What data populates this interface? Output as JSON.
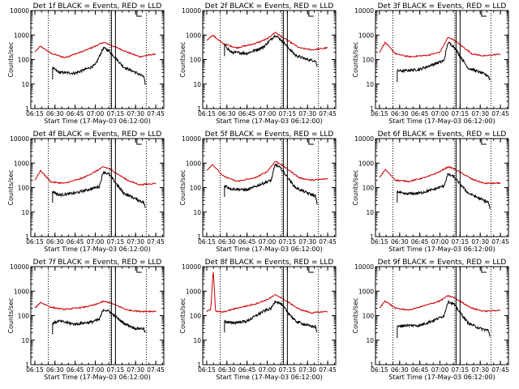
{
  "colors": {
    "events": "#000000",
    "lld": "#cc0000",
    "background": "#ffffff",
    "axes": "#000000"
  },
  "chart_data": [
    {
      "type": "line",
      "title": "Det 1f BLACK = Events, RED = LLD",
      "xlabel": "Start Time (17-May-03 06:12:00)",
      "ylabel": "Counts/sec",
      "yscale": "log",
      "ylim": [
        1,
        10000
      ],
      "xlim": [
        "06:12",
        "07:51"
      ],
      "x_ticks": [
        "06:15",
        "06:30",
        "06:45",
        "07:00",
        "07:15",
        "07:30",
        "07:45"
      ],
      "y_ticks": [
        "1",
        "10",
        "100",
        "1000",
        "10000"
      ],
      "events_profile": [
        [
          6.47,
          45
        ],
        [
          6.55,
          30
        ],
        [
          6.75,
          28
        ],
        [
          6.92,
          45
        ],
        [
          7.0,
          60
        ],
        [
          7.1,
          300
        ],
        [
          7.17,
          230
        ],
        [
          7.35,
          50
        ],
        [
          7.5,
          30
        ],
        [
          7.6,
          20
        ],
        [
          7.62,
          10
        ]
      ],
      "lld_profile": [
        [
          6.25,
          200
        ],
        [
          6.32,
          350
        ],
        [
          6.45,
          180
        ],
        [
          6.62,
          120
        ],
        [
          6.85,
          220
        ],
        [
          7.0,
          350
        ],
        [
          7.1,
          500
        ],
        [
          7.17,
          420
        ],
        [
          7.4,
          200
        ],
        [
          7.55,
          130
        ],
        [
          7.75,
          170
        ]
      ],
      "events_start": 6.47,
      "events_end": 7.62
    },
    {
      "type": "line",
      "title": "Det 2f BLACK = Events, RED = LLD",
      "xlabel": "Start Time (17-May-03 06:12:00)",
      "ylabel": "Counts/sec",
      "yscale": "log",
      "ylim": [
        1,
        10000
      ],
      "xlim": [
        "06:12",
        "07:51"
      ],
      "x_ticks": [
        "06:15",
        "06:30",
        "06:45",
        "07:00",
        "07:15",
        "07:30",
        "07:45"
      ],
      "y_ticks": [
        "1",
        "10",
        "100",
        "1000",
        "10000"
      ],
      "events_profile": [
        [
          6.47,
          400
        ],
        [
          6.55,
          200
        ],
        [
          6.75,
          180
        ],
        [
          6.95,
          320
        ],
        [
          7.1,
          1000
        ],
        [
          7.17,
          650
        ],
        [
          7.35,
          150
        ],
        [
          7.5,
          100
        ],
        [
          7.6,
          90
        ],
        [
          7.62,
          50
        ]
      ],
      "lld_profile": [
        [
          6.25,
          600
        ],
        [
          6.32,
          1000
        ],
        [
          6.45,
          450
        ],
        [
          6.62,
          300
        ],
        [
          6.85,
          450
        ],
        [
          7.0,
          700
        ],
        [
          7.1,
          1300
        ],
        [
          7.17,
          900
        ],
        [
          7.4,
          300
        ],
        [
          7.55,
          250
        ],
        [
          7.75,
          300
        ]
      ],
      "events_start": 6.47,
      "events_end": 7.62
    },
    {
      "type": "line",
      "title": "Det 3f BLACK = Events, RED = LLD",
      "xlabel": "Start Time (17-May-03 06:12:00)",
      "ylabel": "Counts/sec",
      "yscale": "log",
      "ylim": [
        1,
        10000
      ],
      "xlim": [
        "06:12",
        "07:51"
      ],
      "x_ticks": [
        "06:15",
        "06:30",
        "06:45",
        "07:00",
        "07:15",
        "07:30",
        "07:45"
      ],
      "y_ticks": [
        "1",
        "10",
        "100",
        "1000",
        "10000"
      ],
      "events_profile": [
        [
          6.47,
          35
        ],
        [
          6.55,
          35
        ],
        [
          6.75,
          40
        ],
        [
          6.95,
          70
        ],
        [
          7.05,
          90
        ],
        [
          7.1,
          500
        ],
        [
          7.17,
          350
        ],
        [
          7.35,
          45
        ],
        [
          7.5,
          30
        ],
        [
          7.6,
          22
        ],
        [
          7.62,
          15
        ]
      ],
      "lld_profile": [
        [
          6.25,
          200
        ],
        [
          6.32,
          500
        ],
        [
          6.45,
          170
        ],
        [
          6.62,
          130
        ],
        [
          6.85,
          150
        ],
        [
          7.0,
          200
        ],
        [
          7.1,
          800
        ],
        [
          7.17,
          650
        ],
        [
          7.4,
          170
        ],
        [
          7.55,
          140
        ],
        [
          7.75,
          170
        ]
      ],
      "events_start": 6.47,
      "events_end": 7.62
    },
    {
      "type": "line",
      "title": "Det 4f BLACK = Events, RED = LLD",
      "xlabel": "Start Time (17-May-03 06:12:00)",
      "ylabel": "Counts/sec",
      "yscale": "log",
      "ylim": [
        1,
        10000
      ],
      "xlim": [
        "06:12",
        "07:51"
      ],
      "x_ticks": [
        "06:15",
        "06:30",
        "06:45",
        "07:00",
        "07:15",
        "07:30",
        "07:45"
      ],
      "y_ticks": [
        "1",
        "10",
        "100",
        "1000",
        "10000"
      ],
      "events_profile": [
        [
          6.47,
          70
        ],
        [
          6.55,
          50
        ],
        [
          6.75,
          60
        ],
        [
          6.95,
          90
        ],
        [
          7.05,
          110
        ],
        [
          7.1,
          450
        ],
        [
          7.17,
          350
        ],
        [
          7.35,
          60
        ],
        [
          7.5,
          35
        ],
        [
          7.6,
          25
        ],
        [
          7.62,
          15
        ]
      ],
      "lld_profile": [
        [
          6.25,
          200
        ],
        [
          6.32,
          500
        ],
        [
          6.45,
          170
        ],
        [
          6.62,
          150
        ],
        [
          6.85,
          250
        ],
        [
          7.0,
          450
        ],
        [
          7.1,
          700
        ],
        [
          7.17,
          600
        ],
        [
          7.4,
          200
        ],
        [
          7.55,
          130
        ],
        [
          7.75,
          150
        ]
      ],
      "events_start": 6.47,
      "events_end": 7.62
    },
    {
      "type": "line",
      "title": "Det 5f BLACK = Events, RED = LLD",
      "xlabel": "Start Time (17-May-03 06:12:00)",
      "ylabel": "Counts/sec",
      "yscale": "log",
      "ylim": [
        1,
        10000
      ],
      "xlim": [
        "06:12",
        "07:51"
      ],
      "x_ticks": [
        "06:15",
        "06:30",
        "06:45",
        "07:00",
        "07:15",
        "07:30",
        "07:45"
      ],
      "y_ticks": [
        "1",
        "10",
        "100",
        "1000",
        "10000"
      ],
      "events_profile": [
        [
          6.47,
          120
        ],
        [
          6.55,
          90
        ],
        [
          6.75,
          80
        ],
        [
          6.95,
          150
        ],
        [
          7.05,
          200
        ],
        [
          7.1,
          900
        ],
        [
          7.17,
          600
        ],
        [
          7.35,
          100
        ],
        [
          7.5,
          60
        ],
        [
          7.6,
          45
        ],
        [
          7.62,
          20
        ]
      ],
      "lld_profile": [
        [
          6.25,
          500
        ],
        [
          6.32,
          900
        ],
        [
          6.45,
          300
        ],
        [
          6.62,
          180
        ],
        [
          6.85,
          250
        ],
        [
          7.0,
          450
        ],
        [
          7.1,
          1200
        ],
        [
          7.17,
          900
        ],
        [
          7.4,
          250
        ],
        [
          7.55,
          200
        ],
        [
          7.75,
          230
        ]
      ],
      "events_start": 6.47,
      "events_end": 7.62
    },
    {
      "type": "line",
      "title": "Det 6f BLACK = Events, RED = LLD",
      "xlabel": "Start Time (17-May-03 06:12:00)",
      "ylabel": "Counts/sec",
      "yscale": "log",
      "ylim": [
        1,
        10000
      ],
      "xlim": [
        "06:12",
        "07:51"
      ],
      "x_ticks": [
        "06:15",
        "06:30",
        "06:45",
        "07:00",
        "07:15",
        "07:30",
        "07:45"
      ],
      "y_ticks": [
        "1",
        "10",
        "100",
        "1000",
        "10000"
      ],
      "events_profile": [
        [
          6.47,
          70
        ],
        [
          6.55,
          55
        ],
        [
          6.75,
          60
        ],
        [
          6.95,
          90
        ],
        [
          7.05,
          120
        ],
        [
          7.1,
          350
        ],
        [
          7.17,
          280
        ],
        [
          7.35,
          60
        ],
        [
          7.5,
          35
        ],
        [
          7.6,
          25
        ],
        [
          7.62,
          15
        ]
      ],
      "lld_profile": [
        [
          6.25,
          250
        ],
        [
          6.32,
          550
        ],
        [
          6.45,
          200
        ],
        [
          6.62,
          180
        ],
        [
          6.85,
          280
        ],
        [
          7.0,
          450
        ],
        [
          7.1,
          700
        ],
        [
          7.17,
          600
        ],
        [
          7.4,
          220
        ],
        [
          7.55,
          150
        ],
        [
          7.75,
          150
        ]
      ],
      "events_start": 6.47,
      "events_end": 7.62
    },
    {
      "type": "line",
      "title": "Det 7f BLACK = Events, RED = LLD",
      "xlabel": "Start Time (17-May-03 06:12:00)",
      "ylabel": "Counts/sec",
      "yscale": "log",
      "ylim": [
        1,
        10000
      ],
      "xlim": [
        "06:12",
        "07:51"
      ],
      "x_ticks": [
        "06:15",
        "06:30",
        "06:45",
        "07:00",
        "07:15",
        "07:30",
        "07:45"
      ],
      "y_ticks": [
        "1",
        "10",
        "100",
        "1000",
        "10000"
      ],
      "events_profile": [
        [
          6.47,
          50
        ],
        [
          6.55,
          60
        ],
        [
          6.75,
          45
        ],
        [
          6.95,
          55
        ],
        [
          7.05,
          70
        ],
        [
          7.1,
          180
        ],
        [
          7.17,
          150
        ],
        [
          7.35,
          50
        ],
        [
          7.5,
          30
        ],
        [
          7.6,
          30
        ],
        [
          7.62,
          20
        ]
      ],
      "lld_profile": [
        [
          6.25,
          200
        ],
        [
          6.32,
          350
        ],
        [
          6.45,
          220
        ],
        [
          6.62,
          180
        ],
        [
          6.85,
          220
        ],
        [
          7.0,
          280
        ],
        [
          7.1,
          380
        ],
        [
          7.17,
          350
        ],
        [
          7.4,
          170
        ],
        [
          7.55,
          150
        ],
        [
          7.75,
          150
        ]
      ],
      "events_start": 6.47,
      "events_end": 7.62
    },
    {
      "type": "line",
      "title": "Det 8f BLACK = Events, RED = LLD",
      "xlabel": "Start Time (17-May-03 06:12:00)",
      "ylabel": "Counts/sec",
      "yscale": "log",
      "ylim": [
        1,
        10000
      ],
      "xlim": [
        "06:12",
        "07:51"
      ],
      "x_ticks": [
        "06:15",
        "06:30",
        "06:45",
        "07:00",
        "07:15",
        "07:30",
        "07:45"
      ],
      "y_ticks": [
        "1",
        "10",
        "100",
        "1000",
        "10000"
      ],
      "events_profile": [
        [
          6.47,
          60
        ],
        [
          6.55,
          50
        ],
        [
          6.75,
          60
        ],
        [
          6.95,
          150
        ],
        [
          7.05,
          200
        ],
        [
          7.1,
          400
        ],
        [
          7.17,
          300
        ],
        [
          7.35,
          60
        ],
        [
          7.5,
          40
        ],
        [
          7.6,
          35
        ],
        [
          7.62,
          20
        ]
      ],
      "lld_profile": [
        [
          6.25,
          150
        ],
        [
          6.3,
          180
        ],
        [
          6.33,
          8000
        ],
        [
          6.36,
          150
        ],
        [
          6.45,
          140
        ],
        [
          6.62,
          200
        ],
        [
          6.85,
          300
        ],
        [
          7.0,
          450
        ],
        [
          7.1,
          700
        ],
        [
          7.17,
          550
        ],
        [
          7.4,
          180
        ],
        [
          7.55,
          130
        ],
        [
          7.75,
          150
        ]
      ],
      "events_start": 6.47,
      "events_end": 7.62
    },
    {
      "type": "line",
      "title": "Det 9f BLACK = Events, RED = LLD",
      "xlabel": "Start Time (17-May-03 06:12:00)",
      "ylabel": "Counts/sec",
      "yscale": "log",
      "ylim": [
        1,
        10000
      ],
      "xlim": [
        "06:12",
        "07:51"
      ],
      "x_ticks": [
        "06:15",
        "06:30",
        "06:45",
        "07:00",
        "07:15",
        "07:30",
        "07:45"
      ],
      "y_ticks": [
        "1",
        "10",
        "100",
        "1000",
        "10000"
      ],
      "events_profile": [
        [
          6.47,
          35
        ],
        [
          6.55,
          40
        ],
        [
          6.75,
          40
        ],
        [
          6.95,
          70
        ],
        [
          7.05,
          100
        ],
        [
          7.1,
          380
        ],
        [
          7.17,
          300
        ],
        [
          7.35,
          50
        ],
        [
          7.5,
          30
        ],
        [
          7.6,
          25
        ],
        [
          7.62,
          15
        ]
      ],
      "lld_profile": [
        [
          6.25,
          200
        ],
        [
          6.32,
          400
        ],
        [
          6.45,
          200
        ],
        [
          6.62,
          170
        ],
        [
          6.85,
          280
        ],
        [
          7.0,
          400
        ],
        [
          7.1,
          650
        ],
        [
          7.17,
          550
        ],
        [
          7.4,
          200
        ],
        [
          7.55,
          150
        ],
        [
          7.75,
          170
        ]
      ],
      "events_start": 6.47,
      "events_end": 7.62
    }
  ]
}
